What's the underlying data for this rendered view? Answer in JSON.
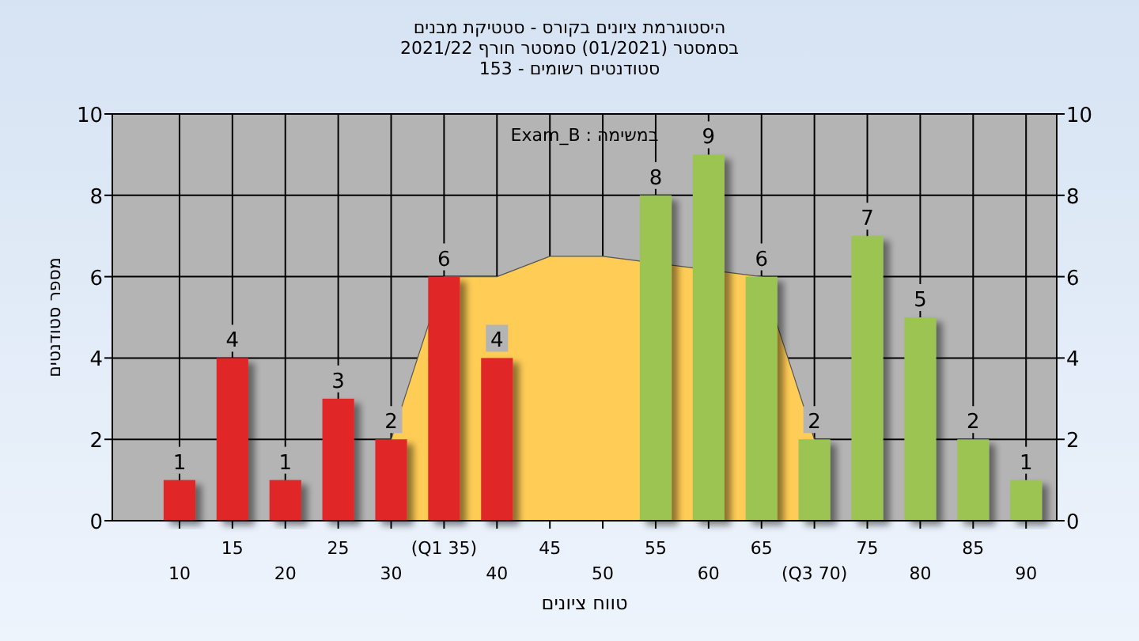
{
  "chart_data": {
    "type": "bar",
    "title": "היסטוגרמת ציונים בקורס - סטטיקת מבנים",
    "subtitle": "בסמסטר  (01/2021)  סמסטר חורף 2021/22\nסטודנטים רשומים - 153",
    "xlabel": "טווח ציונים",
    "ylabel": "מספר סטודנטים",
    "annotations": [
      "במשימה : Exam_B"
    ],
    "categories": [
      "10",
      "15",
      "20",
      "25",
      "30",
      "(Q1 35)",
      "40",
      "45",
      "50",
      "55",
      "60",
      "65",
      "(Q3 70)",
      "75",
      "80",
      "85",
      "90"
    ],
    "series": [
      {
        "type": "area",
        "color": "#ffcc55",
        "values": [
          null,
          null,
          null,
          null,
          2,
          6,
          6,
          6.5,
          6.5,
          null,
          null,
          6,
          2,
          null,
          null,
          null,
          null
        ]
      },
      {
        "colors": [
          "#e02828",
          "#e02828",
          "#e02828",
          "#e02828",
          "#e02828",
          "#e02828",
          "#e02828",
          "#e02828",
          "#e02828",
          "#9cc452",
          "#9cc452",
          "#9cc452",
          "#9cc452",
          "#9cc452",
          "#9cc452",
          "#9cc452",
          "#9cc452"
        ],
        "values": [
          1,
          4,
          1,
          3,
          2,
          6,
          4,
          0,
          0,
          8,
          9,
          6,
          2,
          7,
          5,
          2,
          1
        ],
        "value_labels": [
          "1",
          "4",
          "1",
          "3",
          "2",
          "6",
          "4",
          null,
          null,
          "8",
          "9",
          "6",
          "2",
          "7",
          "5",
          "2",
          "1"
        ]
      }
    ],
    "ylim": [
      0,
      10
    ],
    "yticks": [
      0,
      2,
      4,
      6,
      8,
      10
    ],
    "y2lim": [
      0,
      10
    ],
    "y2ticks": [
      0,
      2,
      4,
      6,
      8,
      10
    ],
    "grid": true
  }
}
